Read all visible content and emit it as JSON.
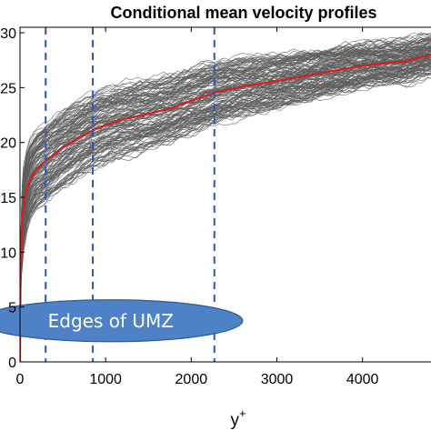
{
  "chart_data": {
    "type": "line",
    "title": "Conditional mean velocity profiles",
    "xlabel": "y",
    "xlabel_superscript": "+",
    "ylabel": "",
    "xlim": [
      0,
      4800
    ],
    "ylim": [
      0,
      30.5
    ],
    "x_ticks": [
      0,
      1000,
      2000,
      3000,
      4000
    ],
    "x_tick_labels": [
      "0",
      "1000",
      "2000",
      "3000",
      "4000"
    ],
    "y_ticks": [
      0,
      5,
      10,
      15,
      20,
      25,
      30
    ],
    "y_tick_labels": [
      "0",
      "5",
      "10",
      "15",
      "20",
      "25",
      "30"
    ],
    "y_tick_labels_note": "left edge of tick labels is cropped in the original image",
    "mean_profile": {
      "color": "#d42020",
      "x": [
        0,
        5,
        15,
        30,
        60,
        100,
        150,
        200,
        300,
        400,
        500,
        700,
        850,
        1000,
        1200,
        1500,
        1800,
        2000,
        2300,
        2600,
        3000,
        3500,
        4000,
        4500,
        4800
      ],
      "y": [
        0,
        6.5,
        10.5,
        13.3,
        15.2,
        16.3,
        17.1,
        17.6,
        18.3,
        18.9,
        19.5,
        20.5,
        21.1,
        21.6,
        22.1,
        22.6,
        23.2,
        23.8,
        24.6,
        25.1,
        25.6,
        26.3,
        27.0,
        27.4,
        28.0
      ]
    },
    "ensemble": {
      "color": "#5f5f5f",
      "description": "many individual instantaneous velocity profiles drawn as thin gray lines"
    },
    "vertical_lines": {
      "style": "dashed",
      "color": "#1f5bc4",
      "x": [
        300,
        850,
        2270
      ]
    },
    "annotation": {
      "text": "Edges of UMZ",
      "fill": "#4f81c7",
      "stroke": "#2e5a9a",
      "text_color": "#ffffff",
      "anchor_x": 1060,
      "anchor_y": 3.75
    }
  }
}
